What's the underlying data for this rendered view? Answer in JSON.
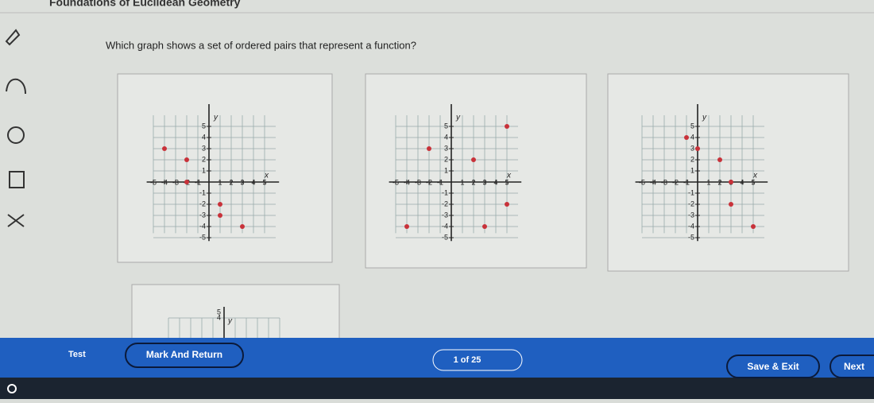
{
  "header": {
    "title": "Foundations of Euclidean Geometry"
  },
  "question": "Which graph shows a set of ordered pairs that represent a function?",
  "graphs": [
    {
      "ticks": [
        -5,
        -4,
        -3,
        -2,
        -1,
        1,
        2,
        3,
        4,
        5
      ],
      "x_label": "x",
      "y_label": "y",
      "points": [
        {
          "x": -4,
          "y": 3
        },
        {
          "x": -2,
          "y": 2
        },
        {
          "x": -2,
          "y": 0
        },
        {
          "x": 1,
          "y": -2
        },
        {
          "x": 1,
          "y": -3
        },
        {
          "x": 3,
          "y": -4
        }
      ]
    },
    {
      "ticks": [
        -5,
        -4,
        -3,
        -2,
        -1,
        1,
        2,
        3,
        4,
        5
      ],
      "x_label": "x",
      "y_label": "y",
      "points": [
        {
          "x": 5,
          "y": 5
        },
        {
          "x": -2,
          "y": 3
        },
        {
          "x": 2,
          "y": 2
        },
        {
          "x": 5,
          "y": -2
        },
        {
          "x": -4,
          "y": -4
        },
        {
          "x": 3,
          "y": -4
        }
      ]
    },
    {
      "ticks": [
        -5,
        -4,
        -3,
        -2,
        -1,
        1,
        2,
        3,
        4,
        5
      ],
      "x_label": "x",
      "y_label": "y",
      "points": [
        {
          "x": -1,
          "y": 4
        },
        {
          "x": 0,
          "y": 3
        },
        {
          "x": 2,
          "y": 2
        },
        {
          "x": 3,
          "y": 0
        },
        {
          "x": 3,
          "y": -2
        },
        {
          "x": 5,
          "y": -4
        }
      ]
    }
  ],
  "partial_graph": {
    "ticks": [
      5,
      4
    ],
    "y_label": "y"
  },
  "footer": {
    "test": "Test",
    "mark_and_return": "Mark And Return",
    "progress": "1 of 25",
    "save_exit": "Save & Exit",
    "next": "Next"
  }
}
